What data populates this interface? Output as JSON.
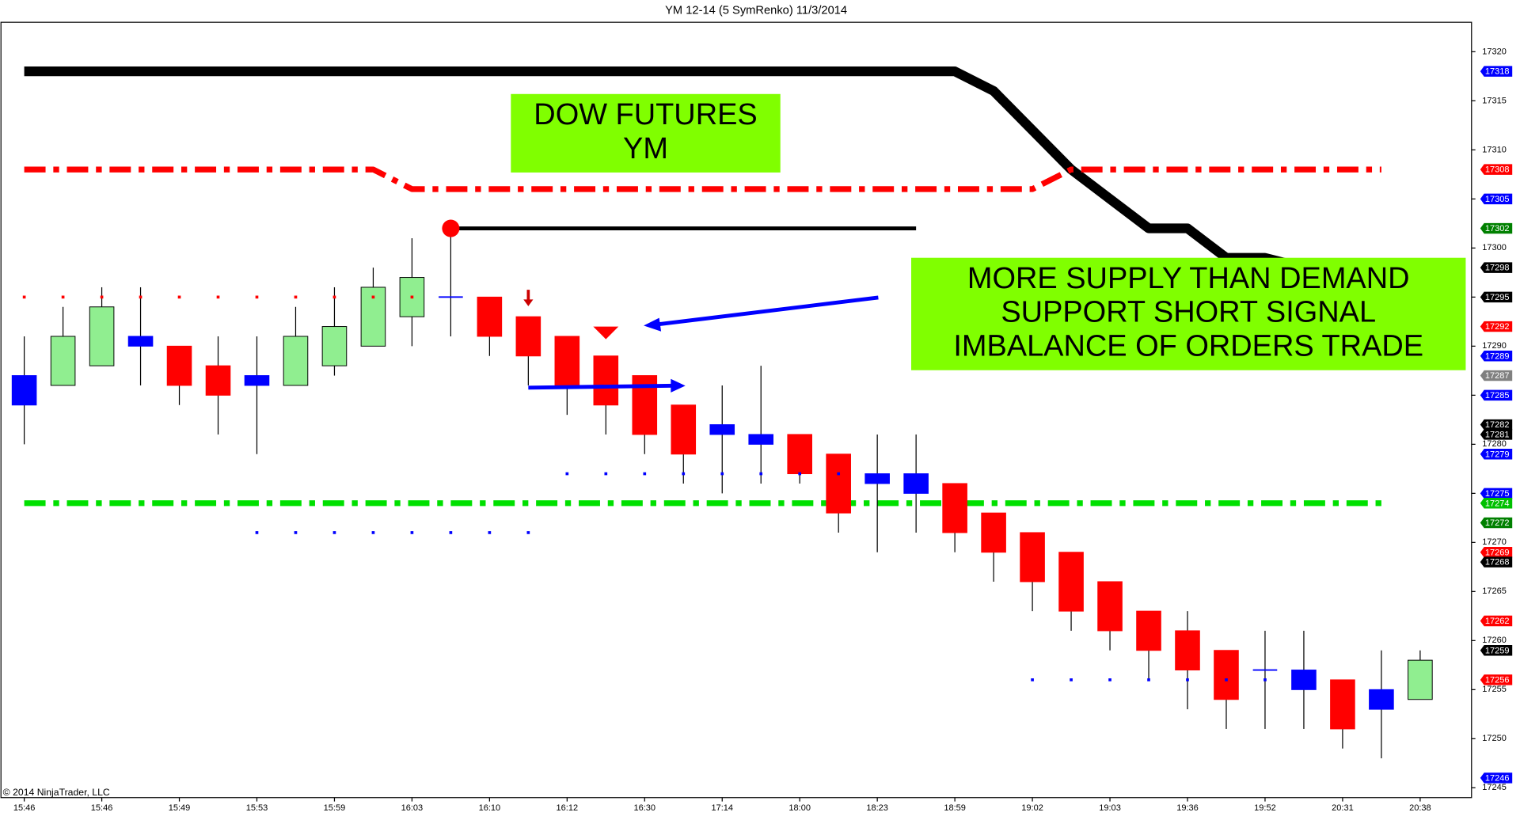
{
  "chart_data": {
    "type": "candlestick",
    "title": "YM 12-14 (5 SymRenko)  11/3/2014",
    "copyright": "© 2014 NinjaTrader, LLC",
    "categories": [
      "15:46",
      null,
      "15:46",
      null,
      "15:49",
      null,
      "15:53",
      null,
      "15:59",
      null,
      "16:03",
      null,
      "16:10",
      null,
      "16:12",
      null,
      "16:30",
      null,
      "17:14",
      null,
      "18:00",
      null,
      "18:23",
      null,
      "18:59",
      null,
      "19:02",
      null,
      "19:03",
      null,
      "19:36",
      null,
      "19:52",
      null,
      "20:31",
      null,
      "20:38"
    ],
    "open": [
      17284,
      17286,
      17288,
      17290,
      17290,
      17288,
      17286,
      17286,
      17288,
      17290,
      17293,
      17295,
      17295,
      17293,
      17291,
      17289,
      17287,
      17284,
      17281,
      17280,
      17281,
      17279,
      17276,
      17275,
      17276,
      17273,
      17271,
      17269,
      17266,
      17263,
      17261,
      17259,
      17257,
      17255,
      17256,
      17253,
      17254
    ],
    "high": [
      17291,
      17294,
      17296,
      17296,
      17290,
      17291,
      17291,
      17294,
      17296,
      17298,
      17301,
      17302,
      17295,
      17293,
      17291,
      17289,
      17287,
      17284,
      17286,
      17288,
      17281,
      17279,
      17281,
      17281,
      17276,
      17273,
      17271,
      17269,
      17266,
      17263,
      17263,
      17259,
      17261,
      17261,
      17256,
      17259,
      17259
    ],
    "low": [
      17280,
      17286,
      17288,
      17286,
      17284,
      17281,
      17279,
      17286,
      17287,
      17290,
      17290,
      17291,
      17289,
      17286,
      17283,
      17281,
      17279,
      17276,
      17275,
      17276,
      17276,
      17271,
      17269,
      17271,
      17269,
      17266,
      17263,
      17261,
      17259,
      17256,
      17253,
      17251,
      17251,
      17251,
      17249,
      17248,
      17254
    ],
    "close": [
      17287,
      17291,
      17294,
      17291,
      17286,
      17285,
      17287,
      17291,
      17292,
      17296,
      17297,
      17295,
      17291,
      17289,
      17286,
      17284,
      17281,
      17279,
      17282,
      17281,
      17277,
      17273,
      17277,
      17277,
      17271,
      17269,
      17266,
      17263,
      17261,
      17259,
      17257,
      17254,
      17257,
      17257,
      17251,
      17255,
      17258
    ],
    "colors": [
      "#0000ff",
      "#90ee90",
      "#90ee90",
      "#0000ff",
      "#ff0000",
      "#ff0000",
      "#0000ff",
      "#90ee90",
      "#90ee90",
      "#90ee90",
      "#90ee90",
      "#0000ff",
      "#ff0000",
      "#ff0000",
      "#ff0000",
      "#ff0000",
      "#ff0000",
      "#ff0000",
      "#0000ff",
      "#0000ff",
      "#ff0000",
      "#ff0000",
      "#0000ff",
      "#0000ff",
      "#ff0000",
      "#ff0000",
      "#ff0000",
      "#ff0000",
      "#ff0000",
      "#ff0000",
      "#ff0000",
      "#ff0000",
      "#0000ff",
      "#0000ff",
      "#ff0000",
      "#0000ff",
      "#90ee90"
    ],
    "lines": [
      {
        "color": "#000000",
        "width": 10,
        "dash": "none",
        "values": [
          17318,
          17318,
          17318,
          17318,
          17318,
          17318,
          17318,
          17318,
          17318,
          17318,
          17318,
          17318,
          17318,
          17318,
          17318,
          17318,
          17318,
          17318,
          17318,
          17318,
          17318,
          17318,
          17318,
          17318,
          17318,
          17316,
          17312,
          17308,
          17305,
          17302,
          17302,
          17299,
          17299,
          17298,
          null,
          null,
          null
        ]
      },
      {
        "color": "#ff0000",
        "width": 6,
        "dash": "22 8 6 8",
        "values": [
          17308,
          17308,
          17308,
          17308,
          17308,
          17308,
          17308,
          17308,
          17308,
          17308,
          17306,
          17306,
          17306,
          17306,
          17306,
          17306,
          17306,
          17306,
          17306,
          17306,
          17306,
          17306,
          17306,
          17306,
          17306,
          17306,
          17306,
          17308,
          17308,
          17308,
          17308,
          17308,
          17308,
          17308,
          17308,
          17308,
          null
        ]
      },
      {
        "color": "#00e000",
        "width": 6,
        "dash": "22 8 6 8",
        "values": [
          17274,
          17274,
          17274,
          17274,
          17274,
          17274,
          17274,
          17274,
          17274,
          17274,
          17274,
          17274,
          17274,
          17274,
          17274,
          17274,
          17274,
          17274,
          17274,
          17274,
          17274,
          17274,
          17274,
          17274,
          17274,
          17274,
          17274,
          17274,
          17274,
          17274,
          17274,
          17274,
          17274,
          17274,
          17274,
          17274,
          null
        ]
      },
      {
        "color": "#000000",
        "width": 4,
        "dash": "none",
        "values": [
          null,
          null,
          null,
          null,
          null,
          null,
          null,
          null,
          null,
          null,
          null,
          17302,
          17302,
          17302,
          17302,
          17302,
          17302,
          17302,
          17302,
          17302,
          17302,
          17302,
          17302,
          17302,
          null,
          null,
          null,
          null,
          null,
          null,
          null,
          null,
          null,
          null,
          null,
          null,
          null
        ]
      }
    ],
    "dots": [
      {
        "color": "#ff0000",
        "size": 3,
        "values": [
          17295,
          17295,
          17295,
          17295,
          17295,
          17295,
          17295,
          17295,
          17295,
          17295,
          17295,
          null,
          null,
          null,
          null,
          null,
          null,
          null,
          null,
          null,
          null,
          null,
          null,
          null,
          null,
          null,
          null,
          null,
          null,
          null,
          null,
          null,
          null,
          null,
          null,
          null,
          null
        ]
      },
      {
        "color": "#0000ff",
        "size": 3,
        "values": [
          null,
          null,
          null,
          null,
          null,
          null,
          17271,
          17271,
          17271,
          17271,
          17271,
          17271,
          17271,
          17271,
          17277,
          17277,
          17277,
          17277,
          17277,
          17277,
          17277,
          17277,
          null,
          null,
          null,
          null,
          17256,
          17256,
          17256,
          17256,
          17256,
          17256,
          17256,
          null,
          null,
          null,
          null
        ]
      },
      {
        "color": "#ff0000",
        "size": 9,
        "values": [
          null,
          null,
          null,
          null,
          null,
          null,
          null,
          null,
          null,
          null,
          null,
          17302,
          null,
          null,
          null,
          null,
          null,
          null,
          null,
          null,
          null,
          null,
          null,
          null,
          null,
          null,
          null,
          null,
          null,
          null,
          null,
          null,
          null,
          null,
          null,
          null,
          null
        ]
      }
    ],
    "ylim": [
      17244,
      17323
    ],
    "yticks": [
      17245,
      17250,
      17255,
      17260,
      17265,
      17270,
      17275,
      17280,
      17285,
      17290,
      17295,
      17300,
      17305,
      17310,
      17315,
      17320
    ],
    "price_markers": [
      {
        "value": 17318,
        "color": "#0000ff"
      },
      {
        "value": 17308,
        "color": "#ff0000"
      },
      {
        "value": 17305,
        "color": "#0000ff"
      },
      {
        "value": 17302,
        "color": "#008000"
      },
      {
        "value": 17298,
        "color": "#000000"
      },
      {
        "value": 17295,
        "color": "#000000"
      },
      {
        "value": 17292,
        "color": "#ff0000"
      },
      {
        "value": 17289,
        "color": "#0000ff"
      },
      {
        "value": 17287,
        "color": "#808080"
      },
      {
        "value": 17285,
        "color": "#0000ff"
      },
      {
        "value": 17282,
        "color": "#000000"
      },
      {
        "value": 17281,
        "color": "#000000"
      },
      {
        "value": 17279,
        "color": "#0000ff"
      },
      {
        "value": 17275,
        "color": "#0000ff"
      },
      {
        "value": 17274,
        "color": "#00c000"
      },
      {
        "value": 17272,
        "color": "#008000"
      },
      {
        "value": 17269,
        "color": "#ff0000"
      },
      {
        "value": 17268,
        "color": "#000000"
      },
      {
        "value": 17262,
        "color": "#ff0000"
      },
      {
        "value": 17259,
        "color": "#000000"
      },
      {
        "value": 17256,
        "color": "#ff0000"
      },
      {
        "value": 17246,
        "color": "#0000ff"
      }
    ],
    "annotations": [
      {
        "lines": [
          "DOW FUTURES",
          "YM"
        ]
      },
      {
        "lines": [
          "MORE SUPPLY THAN DEMAND",
          "SUPPORT SHORT SIGNAL",
          "IMBALANCE OF ORDERS TRADE"
        ]
      }
    ]
  }
}
